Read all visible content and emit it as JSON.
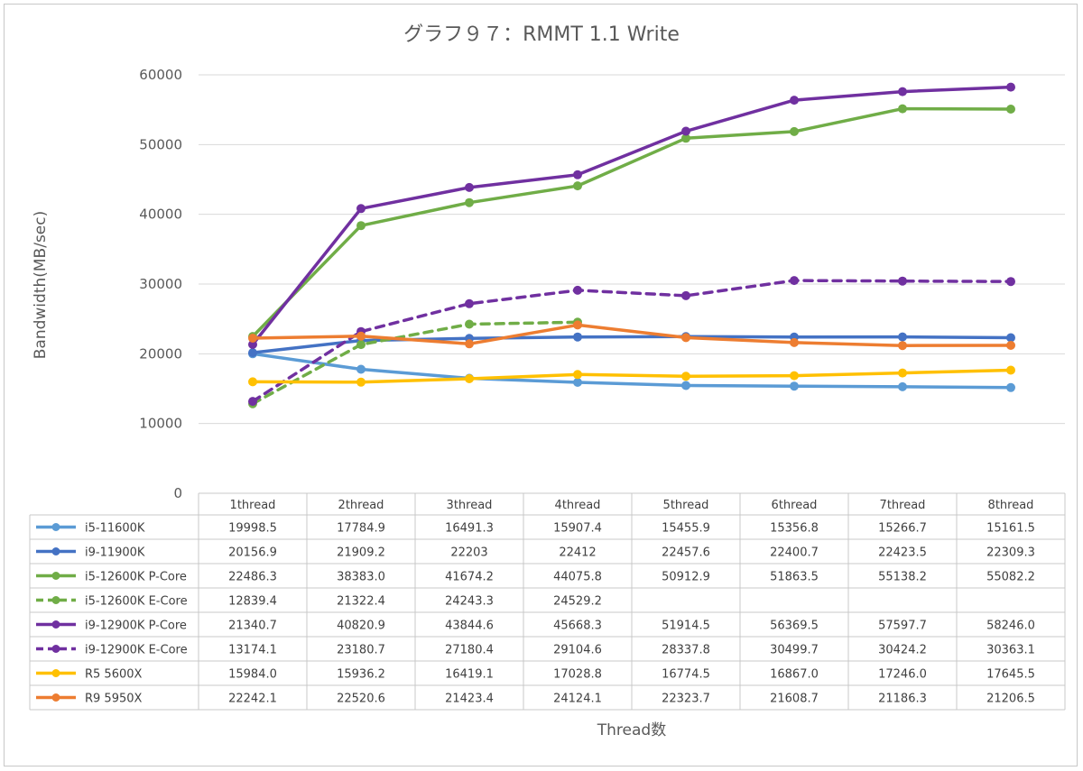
{
  "chart_data": {
    "type": "line",
    "title": "グラフ９７：RMMT 1.1 Write",
    "xlabel": "Thread数",
    "ylabel": "Bandwidth(MB/sec)",
    "ylim": [
      0,
      60000
    ],
    "yticks": [
      0,
      10000,
      20000,
      30000,
      40000,
      50000,
      60000
    ],
    "grid": true,
    "legend": "data-table",
    "categories": [
      "1thread",
      "2thread",
      "3thread",
      "4thread",
      "5thread",
      "6thread",
      "7thread",
      "8thread"
    ],
    "series": [
      {
        "name": "i5-11600K",
        "color": "#5b9bd5",
        "dashed": false,
        "values": [
          19998.5,
          17784.9,
          16491.3,
          15907.4,
          15455.9,
          15356.8,
          15266.7,
          15161.5
        ],
        "labels": [
          "19998.5",
          "17784.9",
          "16491.3",
          "15907.4",
          "15455.9",
          "15356.8",
          "15266.7",
          "15161.5"
        ]
      },
      {
        "name": "i9-11900K",
        "color": "#4472c4",
        "dashed": false,
        "values": [
          20156.9,
          21909.2,
          22203,
          22412,
          22457.6,
          22400.7,
          22423.5,
          22309.3
        ],
        "labels": [
          "20156.9",
          "21909.2",
          "22203",
          "22412",
          "22457.6",
          "22400.7",
          "22423.5",
          "22309.3"
        ]
      },
      {
        "name": "i5-12600K P-Core",
        "color": "#70ad47",
        "dashed": false,
        "values": [
          22486.3,
          38383.0,
          41674.2,
          44075.8,
          50912.9,
          51863.5,
          55138.2,
          55082.2
        ],
        "labels": [
          "22486.3",
          "38383.0",
          "41674.2",
          "44075.8",
          "50912.9",
          "51863.5",
          "55138.2",
          "55082.2"
        ]
      },
      {
        "name": "i5-12600K E-Core",
        "color": "#70ad47",
        "dashed": true,
        "values": [
          12839.4,
          21322.4,
          24243.3,
          24529.2,
          null,
          null,
          null,
          null
        ],
        "labels": [
          "12839.4",
          "21322.4",
          "24243.3",
          "24529.2",
          "",
          "",
          "",
          ""
        ]
      },
      {
        "name": "i9-12900K P-Core",
        "color": "#7030a0",
        "dashed": false,
        "values": [
          21340.7,
          40820.9,
          43844.6,
          45668.3,
          51914.5,
          56369.5,
          57597.7,
          58246.0
        ],
        "labels": [
          "21340.7",
          "40820.9",
          "43844.6",
          "45668.3",
          "51914.5",
          "56369.5",
          "57597.7",
          "58246.0"
        ]
      },
      {
        "name": "i9-12900K E-Core",
        "color": "#7030a0",
        "dashed": true,
        "values": [
          13174.1,
          23180.7,
          27180.4,
          29104.6,
          28337.8,
          30499.7,
          30424.2,
          30363.1
        ],
        "labels": [
          "13174.1",
          "23180.7",
          "27180.4",
          "29104.6",
          "28337.8",
          "30499.7",
          "30424.2",
          "30363.1"
        ]
      },
      {
        "name": "R5 5600X",
        "color": "#ffc000",
        "dashed": false,
        "values": [
          15984.0,
          15936.2,
          16419.1,
          17028.8,
          16774.5,
          16867.0,
          17246.0,
          17645.5
        ],
        "labels": [
          "15984.0",
          "15936.2",
          "16419.1",
          "17028.8",
          "16774.5",
          "16867.0",
          "17246.0",
          "17645.5"
        ]
      },
      {
        "name": "R9 5950X",
        "color": "#ed7d31",
        "dashed": false,
        "values": [
          22242.1,
          22520.6,
          21423.4,
          24124.1,
          22323.7,
          21608.7,
          21186.3,
          21206.5
        ],
        "labels": [
          "22242.1",
          "22520.6",
          "21423.4",
          "24124.1",
          "22323.7",
          "21608.7",
          "21186.3",
          "21206.5"
        ]
      }
    ]
  }
}
